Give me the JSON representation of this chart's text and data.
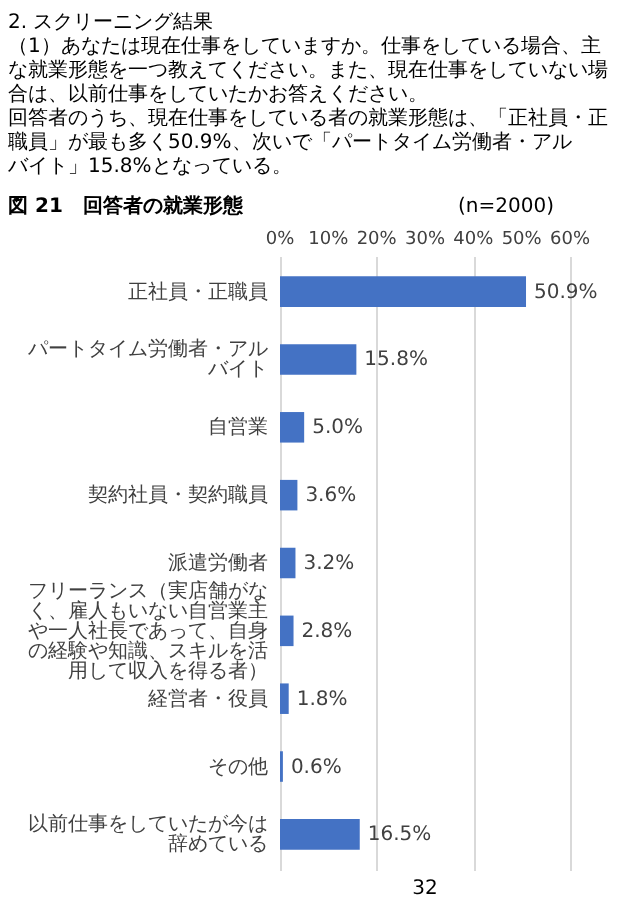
{
  "chart_data": {
    "type": "bar",
    "orientation": "horizontal",
    "title": "図 21　回答者の就業形態",
    "categories": [
      "正社員・正職員",
      "パートタイム労働者・アルバイト",
      "自営業",
      "契約社員・契約職員",
      "派遣労働者",
      "フリーランス（実店舗がなく、雇人もいない自営業主や一人社長であって、自身の経験や知識、スキルを活用して収入を得る者）",
      "経営者・役員",
      "その他",
      "以前仕事をしていたが今は辞めている"
    ],
    "values": [
      50.9,
      15.8,
      5.0,
      3.6,
      3.2,
      2.8,
      1.8,
      0.6,
      16.5
    ],
    "value_labels": [
      "50.9%",
      "15.8%",
      "5.0%",
      "3.6%",
      "3.2%",
      "2.8%",
      "1.8%",
      "0.6%",
      "16.5%"
    ],
    "color": "#4472c4",
    "xlim": [
      0,
      60
    ],
    "xticks": [
      {
        "value": 0,
        "label": "0%"
      },
      {
        "value": 10,
        "label": "10%"
      },
      {
        "value": 20,
        "label": "20%"
      },
      {
        "value": 30,
        "label": "30%"
      },
      {
        "value": 40,
        "label": "40%"
      },
      {
        "value": 50,
        "label": "50%"
      },
      {
        "value": 60,
        "label": "60%"
      }
    ],
    "grid": "x",
    "annotations": [
      "2. スクリーニング結果",
      "（1）あなたは現在仕事をしていますか。仕事をしている場合、主な就業形態を一つ教えてください。また、現在仕事をしていない場合は、以前仕事をしていたかお答えください。",
      "回答者のうち、現在仕事をしている者の就業形態は、「正社員・正職員」が最も多く50.9%、次いで「パートタイム労働者・アルバイト」15.8%となっている。",
      "(n=2000)",
      "32"
    ]
  }
}
